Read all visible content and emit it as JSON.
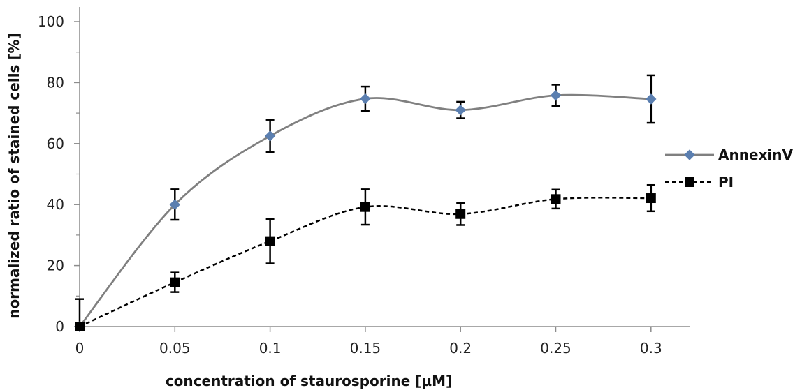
{
  "chart_data": {
    "type": "line",
    "title": "",
    "xlabel": "concentration of staurosporine [µM]",
    "ylabel": "normalized ratio of stained cells [%]",
    "x": [
      0,
      0.05,
      0.1,
      0.15,
      0.2,
      0.25,
      0.3
    ],
    "x_tick_labels": [
      "0",
      "0.05",
      "0.1",
      "0.15",
      "0.2",
      "0.25",
      "0.3"
    ],
    "y_tick_labels": [
      "0",
      "20",
      "40",
      "60",
      "80",
      "100"
    ],
    "y_ticks": [
      0,
      20,
      40,
      60,
      80,
      100
    ],
    "xlim": [
      0,
      0.3
    ],
    "ylim": [
      0,
      100
    ],
    "grid": false,
    "legend_position": "right",
    "smoothed": true,
    "series": [
      {
        "name": "AnnexinV",
        "values": [
          0,
          40,
          62.5,
          74.7,
          71,
          75.8,
          74.6
        ],
        "error": [
          0,
          5,
          5.3,
          4,
          2.7,
          3.5,
          7.8
        ],
        "color": "#808080",
        "marker": "diamond",
        "marker_color": "#5b7fb0",
        "line_style": "solid"
      },
      {
        "name": "PI",
        "values": [
          0,
          14.5,
          28,
          39.2,
          36.9,
          41.8,
          42.1
        ],
        "error": [
          9,
          3.2,
          7.3,
          5.8,
          3.6,
          3.1,
          4.3
        ],
        "color": "#000000",
        "marker": "square",
        "marker_color": "#000000",
        "line_style": "dashed"
      }
    ]
  }
}
